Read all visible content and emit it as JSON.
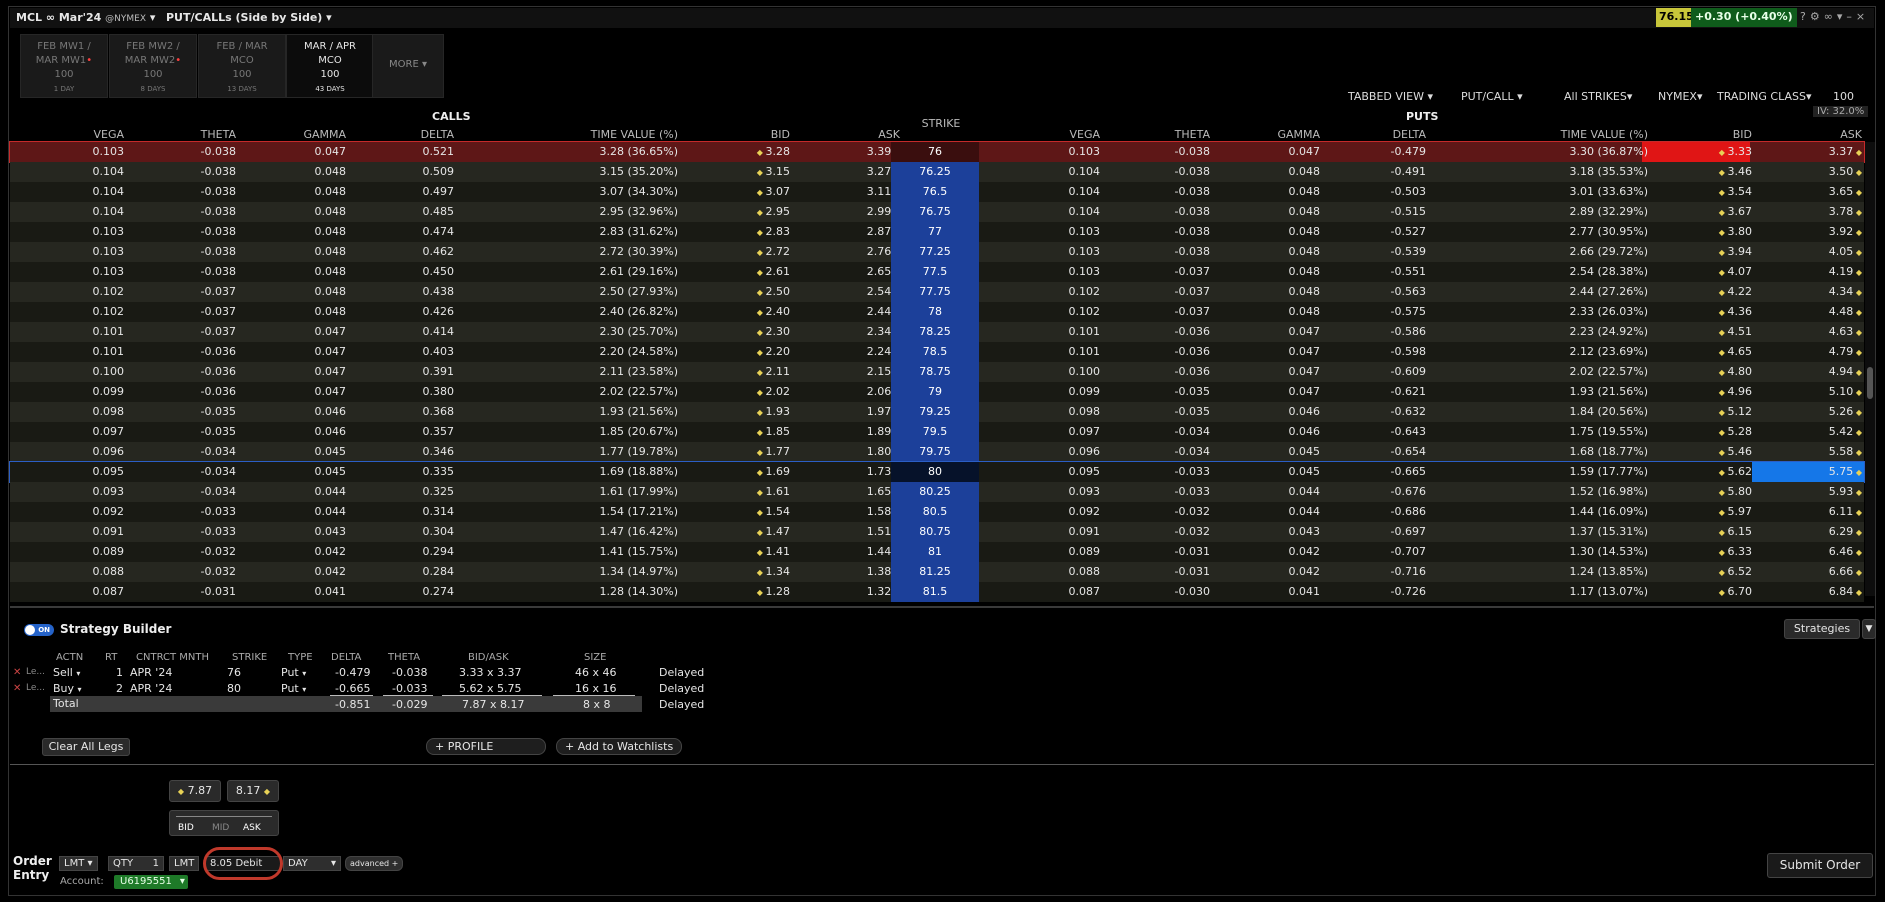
{
  "header": {
    "symbol": "MCL ∞ Mar'24",
    "exchange": "@NYMEX",
    "mode": "PUT/CALLs (Side by Side)",
    "last_price": "76.15",
    "change": "+0.30 (+0.40%)"
  },
  "expiry_tabs": [
    {
      "line1": "FEB MW1 /",
      "line2": "MAR MW1",
      "mult": "100",
      "days": "1 DAY",
      "active": false
    },
    {
      "line1": "FEB MW2 /",
      "line2": "MAR MW2",
      "mult": "100",
      "days": "8 DAYS",
      "active": false
    },
    {
      "line1": "FEB / MAR",
      "line2": "MCO",
      "mult": "100",
      "days": "13 DAYS",
      "active": false
    },
    {
      "line1": "MAR / APR",
      "line2": "MCO",
      "mult": "100",
      "days": "43 DAYS",
      "active": true
    }
  ],
  "more_label": "MORE",
  "controls": {
    "tabbed_view": "TABBED VIEW",
    "put_call": "PUT/CALL",
    "all_strikes": "All STRIKES",
    "exchange": "NYMEX",
    "trading_class": "TRADING CLASS",
    "multiplier": "100",
    "iv": "IV: 32.0%"
  },
  "chain": {
    "calls_title": "CALLS",
    "puts_title": "PUTS",
    "strike_header": "STRIKE",
    "call_columns": [
      "VEGA",
      "THETA",
      "GAMMA",
      "DELTA",
      "TIME VALUE (%)",
      "BID",
      "ASK"
    ],
    "put_columns": [
      "VEGA",
      "THETA",
      "GAMMA",
      "DELTA",
      "TIME VALUE (%)",
      "BID",
      "ASK"
    ],
    "rows": [
      {
        "strike": "76",
        "c": [
          "0.103",
          "-0.038",
          "0.047",
          "0.521",
          "3.28 (36.65%)",
          "3.28",
          "3.39"
        ],
        "p": [
          "0.103",
          "-0.038",
          "0.047",
          "-0.479",
          "3.30 (36.87%)",
          "3.33",
          "3.37"
        ]
      },
      {
        "strike": "76.25",
        "c": [
          "0.104",
          "-0.038",
          "0.048",
          "0.509",
          "3.15 (35.20%)",
          "3.15",
          "3.27"
        ],
        "p": [
          "0.104",
          "-0.038",
          "0.048",
          "-0.491",
          "3.18 (35.53%)",
          "3.46",
          "3.50"
        ]
      },
      {
        "strike": "76.5",
        "c": [
          "0.104",
          "-0.038",
          "0.048",
          "0.497",
          "3.07 (34.30%)",
          "3.07",
          "3.11"
        ],
        "p": [
          "0.104",
          "-0.038",
          "0.048",
          "-0.503",
          "3.01 (33.63%)",
          "3.54",
          "3.65"
        ]
      },
      {
        "strike": "76.75",
        "c": [
          "0.104",
          "-0.038",
          "0.048",
          "0.485",
          "2.95 (32.96%)",
          "2.95",
          "2.99"
        ],
        "p": [
          "0.104",
          "-0.038",
          "0.048",
          "-0.515",
          "2.89 (32.29%)",
          "3.67",
          "3.78"
        ]
      },
      {
        "strike": "77",
        "c": [
          "0.103",
          "-0.038",
          "0.048",
          "0.474",
          "2.83 (31.62%)",
          "2.83",
          "2.87"
        ],
        "p": [
          "0.103",
          "-0.038",
          "0.048",
          "-0.527",
          "2.77 (30.95%)",
          "3.80",
          "3.92"
        ]
      },
      {
        "strike": "77.25",
        "c": [
          "0.103",
          "-0.038",
          "0.048",
          "0.462",
          "2.72 (30.39%)",
          "2.72",
          "2.76"
        ],
        "p": [
          "0.103",
          "-0.038",
          "0.048",
          "-0.539",
          "2.66 (29.72%)",
          "3.94",
          "4.05"
        ]
      },
      {
        "strike": "77.5",
        "c": [
          "0.103",
          "-0.038",
          "0.048",
          "0.450",
          "2.61 (29.16%)",
          "2.61",
          "2.65"
        ],
        "p": [
          "0.103",
          "-0.037",
          "0.048",
          "-0.551",
          "2.54 (28.38%)",
          "4.07",
          "4.19"
        ]
      },
      {
        "strike": "77.75",
        "c": [
          "0.102",
          "-0.037",
          "0.048",
          "0.438",
          "2.50 (27.93%)",
          "2.50",
          "2.54"
        ],
        "p": [
          "0.102",
          "-0.037",
          "0.048",
          "-0.563",
          "2.44 (27.26%)",
          "4.22",
          "4.34"
        ]
      },
      {
        "strike": "78",
        "c": [
          "0.102",
          "-0.037",
          "0.048",
          "0.426",
          "2.40 (26.82%)",
          "2.40",
          "2.44"
        ],
        "p": [
          "0.102",
          "-0.037",
          "0.048",
          "-0.575",
          "2.33 (26.03%)",
          "4.36",
          "4.48"
        ]
      },
      {
        "strike": "78.25",
        "c": [
          "0.101",
          "-0.037",
          "0.047",
          "0.414",
          "2.30 (25.70%)",
          "2.30",
          "2.34"
        ],
        "p": [
          "0.101",
          "-0.036",
          "0.047",
          "-0.586",
          "2.23 (24.92%)",
          "4.51",
          "4.63"
        ]
      },
      {
        "strike": "78.5",
        "c": [
          "0.101",
          "-0.036",
          "0.047",
          "0.403",
          "2.20 (24.58%)",
          "2.20",
          "2.24"
        ],
        "p": [
          "0.101",
          "-0.036",
          "0.047",
          "-0.598",
          "2.12 (23.69%)",
          "4.65",
          "4.79"
        ]
      },
      {
        "strike": "78.75",
        "c": [
          "0.100",
          "-0.036",
          "0.047",
          "0.391",
          "2.11 (23.58%)",
          "2.11",
          "2.15"
        ],
        "p": [
          "0.100",
          "-0.036",
          "0.047",
          "-0.609",
          "2.02 (22.57%)",
          "4.80",
          "4.94"
        ]
      },
      {
        "strike": "79",
        "c": [
          "0.099",
          "-0.036",
          "0.047",
          "0.380",
          "2.02 (22.57%)",
          "2.02",
          "2.06"
        ],
        "p": [
          "0.099",
          "-0.035",
          "0.047",
          "-0.621",
          "1.93 (21.56%)",
          "4.96",
          "5.10"
        ]
      },
      {
        "strike": "79.25",
        "c": [
          "0.098",
          "-0.035",
          "0.046",
          "0.368",
          "1.93 (21.56%)",
          "1.93",
          "1.97"
        ],
        "p": [
          "0.098",
          "-0.035",
          "0.046",
          "-0.632",
          "1.84 (20.56%)",
          "5.12",
          "5.26"
        ]
      },
      {
        "strike": "79.5",
        "c": [
          "0.097",
          "-0.035",
          "0.046",
          "0.357",
          "1.85 (20.67%)",
          "1.85",
          "1.89"
        ],
        "p": [
          "0.097",
          "-0.034",
          "0.046",
          "-0.643",
          "1.75 (19.55%)",
          "5.28",
          "5.42"
        ]
      },
      {
        "strike": "79.75",
        "c": [
          "0.096",
          "-0.034",
          "0.045",
          "0.346",
          "1.77 (19.78%)",
          "1.77",
          "1.80"
        ],
        "p": [
          "0.096",
          "-0.034",
          "0.045",
          "-0.654",
          "1.68 (18.77%)",
          "5.46",
          "5.58"
        ]
      },
      {
        "strike": "80",
        "c": [
          "0.095",
          "-0.034",
          "0.045",
          "0.335",
          "1.69 (18.88%)",
          "1.69",
          "1.73"
        ],
        "p": [
          "0.095",
          "-0.033",
          "0.045",
          "-0.665",
          "1.59 (17.77%)",
          "5.62",
          "5.75"
        ]
      },
      {
        "strike": "80.25",
        "c": [
          "0.093",
          "-0.034",
          "0.044",
          "0.325",
          "1.61 (17.99%)",
          "1.61",
          "1.65"
        ],
        "p": [
          "0.093",
          "-0.033",
          "0.044",
          "-0.676",
          "1.52 (16.98%)",
          "5.80",
          "5.93"
        ]
      },
      {
        "strike": "80.5",
        "c": [
          "0.092",
          "-0.033",
          "0.044",
          "0.314",
          "1.54 (17.21%)",
          "1.54",
          "1.58"
        ],
        "p": [
          "0.092",
          "-0.032",
          "0.044",
          "-0.686",
          "1.44 (16.09%)",
          "5.97",
          "6.11"
        ]
      },
      {
        "strike": "80.75",
        "c": [
          "0.091",
          "-0.033",
          "0.043",
          "0.304",
          "1.47 (16.42%)",
          "1.47",
          "1.51"
        ],
        "p": [
          "0.091",
          "-0.032",
          "0.043",
          "-0.697",
          "1.37 (15.31%)",
          "6.15",
          "6.29"
        ]
      },
      {
        "strike": "81",
        "c": [
          "0.089",
          "-0.032",
          "0.042",
          "0.294",
          "1.41 (15.75%)",
          "1.41",
          "1.44"
        ],
        "p": [
          "0.089",
          "-0.031",
          "0.042",
          "-0.707",
          "1.30 (14.53%)",
          "6.33",
          "6.46"
        ]
      },
      {
        "strike": "81.25",
        "c": [
          "0.088",
          "-0.032",
          "0.042",
          "0.284",
          "1.34 (14.97%)",
          "1.34",
          "1.38"
        ],
        "p": [
          "0.088",
          "-0.031",
          "0.042",
          "-0.716",
          "1.24 (13.85%)",
          "6.52",
          "6.66"
        ]
      },
      {
        "strike": "81.5",
        "c": [
          "0.087",
          "-0.031",
          "0.041",
          "0.274",
          "1.28 (14.30%)",
          "1.28",
          "1.32"
        ],
        "p": [
          "0.087",
          "-0.030",
          "0.041",
          "-0.726",
          "1.17 (13.07%)",
          "6.70",
          "6.84"
        ]
      }
    ]
  },
  "strategy": {
    "title": "Strategy Builder",
    "toggle_label": "ON",
    "strategies_label": "Strategies",
    "columns": [
      "ACTN",
      "RT",
      "CNTRCT MNTH",
      "STRIKE",
      "TYPE",
      "DELTA",
      "THETA",
      "BID/ASK",
      "SIZE"
    ],
    "legs": [
      {
        "tag": "Le...",
        "actn": "Sell",
        "rt": "1",
        "month": "APR '24",
        "strike": "76",
        "type": "Put",
        "delta": "-0.479",
        "theta": "-0.038",
        "bidask": "3.33 x 3.37",
        "size": "46 x 46",
        "status": "Delayed"
      },
      {
        "tag": "Le...",
        "actn": "Buy",
        "rt": "2",
        "month": "APR '24",
        "strike": "80",
        "type": "Put",
        "delta": "-0.665",
        "theta": "-0.033",
        "bidask": "5.62 x 5.75",
        "size": "16 x 16",
        "status": "Delayed"
      }
    ],
    "total": {
      "label": "Total",
      "delta": "-0.851",
      "theta": "-0.029",
      "bidask": "7.87 x 8.17",
      "size": "8 x 8",
      "status": "Delayed"
    },
    "clear_label": "Clear All Legs",
    "profile_label": "+ PROFILE",
    "watchlist_label": "+ Add to Watchlists"
  },
  "order": {
    "label_line1": "Order",
    "label_line2": "Entry",
    "bid": "7.87",
    "ask": "8.17",
    "bid_label": "BID",
    "mid_label": "MID",
    "ask_label": "ASK",
    "type": "LMT",
    "qty_label": "QTY",
    "qty": "1",
    "price_type": "LMT",
    "price": "8.05 Debit",
    "tif": "DAY",
    "advanced": "advanced",
    "account_label": "Account:",
    "account": "U6195551",
    "submit": "Submit Order"
  }
}
